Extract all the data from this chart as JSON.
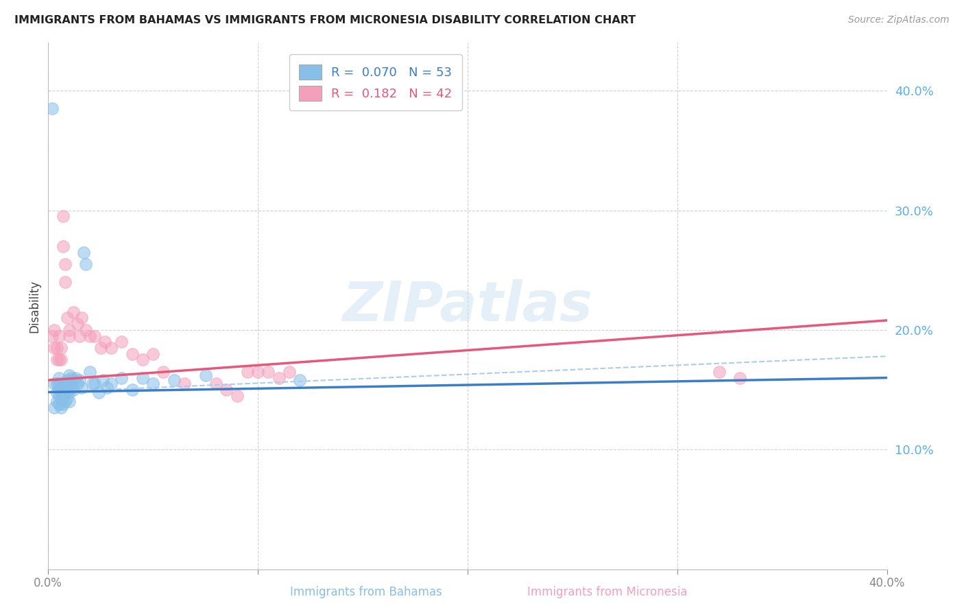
{
  "title": "IMMIGRANTS FROM BAHAMAS VS IMMIGRANTS FROM MICRONESIA DISABILITY CORRELATION CHART",
  "source": "Source: ZipAtlas.com",
  "ylabel": "Disability",
  "xlim": [
    0.0,
    0.4
  ],
  "ylim": [
    0.0,
    0.44
  ],
  "ytick_vals": [
    0.1,
    0.2,
    0.3,
    0.4
  ],
  "ytick_labels": [
    "10.0%",
    "20.0%",
    "30.0%",
    "40.0%"
  ],
  "xtick_vals": [
    0.0,
    0.1,
    0.2,
    0.3,
    0.4
  ],
  "xtick_labels": [
    "0.0%",
    "",
    "",
    "",
    "40.0%"
  ],
  "legend_R1": "0.070",
  "legend_N1": "53",
  "legend_R2": "0.182",
  "legend_N2": "42",
  "blue_color": "#88bfe8",
  "pink_color": "#f4a0bb",
  "blue_line_color": "#3a7dc9",
  "pink_line_color": "#e8567a",
  "dashed_line_color": "#aaccee",
  "watermark": "ZIPatlas",
  "background_color": "#ffffff",
  "bahamas_x": [
    0.002,
    0.003,
    0.003,
    0.004,
    0.004,
    0.004,
    0.005,
    0.005,
    0.005,
    0.005,
    0.005,
    0.006,
    0.006,
    0.006,
    0.006,
    0.007,
    0.007,
    0.007,
    0.007,
    0.008,
    0.008,
    0.008,
    0.009,
    0.009,
    0.009,
    0.01,
    0.01,
    0.01,
    0.01,
    0.011,
    0.011,
    0.012,
    0.012,
    0.013,
    0.014,
    0.015,
    0.016,
    0.017,
    0.018,
    0.02,
    0.021,
    0.022,
    0.024,
    0.026,
    0.028,
    0.03,
    0.035,
    0.04,
    0.045,
    0.05,
    0.06,
    0.075,
    0.12
  ],
  "bahamas_y": [
    0.385,
    0.155,
    0.135,
    0.155,
    0.148,
    0.14,
    0.16,
    0.155,
    0.15,
    0.145,
    0.138,
    0.155,
    0.148,
    0.142,
    0.135,
    0.155,
    0.15,
    0.145,
    0.138,
    0.155,
    0.148,
    0.14,
    0.158,
    0.15,
    0.143,
    0.162,
    0.155,
    0.148,
    0.14,
    0.16,
    0.152,
    0.158,
    0.15,
    0.16,
    0.155,
    0.158,
    0.152,
    0.265,
    0.255,
    0.165,
    0.155,
    0.155,
    0.148,
    0.158,
    0.152,
    0.155,
    0.16,
    0.15,
    0.16,
    0.155,
    0.158,
    0.162,
    0.158
  ],
  "micronesia_x": [
    0.002,
    0.003,
    0.003,
    0.004,
    0.004,
    0.005,
    0.005,
    0.006,
    0.006,
    0.007,
    0.007,
    0.008,
    0.008,
    0.009,
    0.01,
    0.01,
    0.012,
    0.014,
    0.015,
    0.016,
    0.018,
    0.02,
    0.022,
    0.025,
    0.027,
    0.03,
    0.035,
    0.04,
    0.045,
    0.05,
    0.055,
    0.065,
    0.08,
    0.085,
    0.09,
    0.095,
    0.1,
    0.105,
    0.11,
    0.115,
    0.32,
    0.33
  ],
  "micronesia_y": [
    0.195,
    0.2,
    0.185,
    0.185,
    0.175,
    0.195,
    0.175,
    0.185,
    0.175,
    0.295,
    0.27,
    0.255,
    0.24,
    0.21,
    0.2,
    0.195,
    0.215,
    0.205,
    0.195,
    0.21,
    0.2,
    0.195,
    0.195,
    0.185,
    0.19,
    0.185,
    0.19,
    0.18,
    0.175,
    0.18,
    0.165,
    0.155,
    0.155,
    0.15,
    0.145,
    0.165,
    0.165,
    0.165,
    0.16,
    0.165,
    0.165,
    0.16
  ]
}
